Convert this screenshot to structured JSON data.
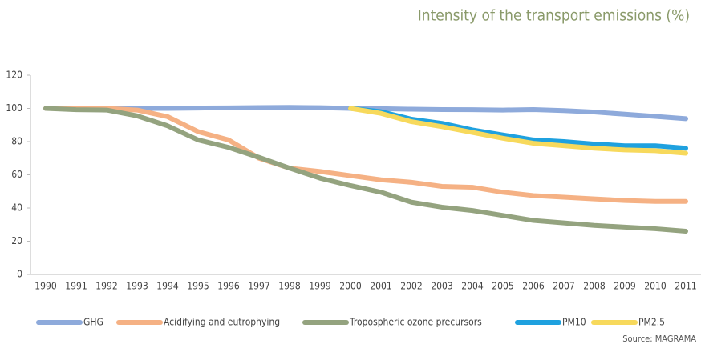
{
  "chart_data": {
    "type": "line",
    "title": "Intensity of the transport emissions (%)",
    "source": "Source: MAGRAMA",
    "categories": [
      "1990",
      "1991",
      "1992",
      "1993",
      "1994",
      "1995",
      "1996",
      "1997",
      "1998",
      "1999",
      "2000",
      "2001",
      "2002",
      "2003",
      "2004",
      "2005",
      "2006",
      "2007",
      "2008",
      "2009",
      "2010",
      "2011"
    ],
    "ylim": [
      0,
      120
    ],
    "yticks": [
      0,
      20,
      40,
      60,
      80,
      100,
      120
    ],
    "grid": false,
    "legend": "bottom",
    "series": [
      {
        "name": "GHG",
        "color": "#8eaadb",
        "values": [
          100,
          100,
          100,
          100,
          100,
          100.2,
          100.3,
          100.5,
          100.6,
          100.4,
          100,
          99.8,
          99.5,
          99.3,
          99.2,
          99,
          99.3,
          98.7,
          97.8,
          96.5,
          95.2,
          93.8
        ]
      },
      {
        "name": "Acidifying and eutrophying",
        "color": "#f5b184",
        "values": [
          100,
          100,
          100,
          99,
          95,
          86,
          81,
          70,
          64,
          62,
          59.5,
          57,
          55.5,
          53,
          52.5,
          49.5,
          47.5,
          46.5,
          45.5,
          44.5,
          44,
          44
        ]
      },
      {
        "name": "Tropospheric ozone precursors",
        "color": "#94a37f",
        "values": [
          100,
          99.2,
          99,
          95.5,
          89.5,
          81,
          76.5,
          70.5,
          64,
          58,
          53.5,
          49.5,
          43.5,
          40.5,
          38.5,
          35.5,
          32.5,
          31,
          29.5,
          28.5,
          27.5,
          26
        ]
      },
      {
        "name": "PM10",
        "color": "#1fa1df",
        "values": [
          null,
          null,
          null,
          null,
          null,
          null,
          null,
          null,
          null,
          null,
          100,
          98,
          93.5,
          91,
          87,
          84,
          81,
          80,
          78.5,
          77.5,
          77.5,
          76
        ]
      },
      {
        "name": "PM2.5",
        "color": "#f7d95c",
        "values": [
          null,
          null,
          null,
          null,
          null,
          null,
          null,
          null,
          null,
          null,
          100,
          97,
          92,
          89,
          85.5,
          82,
          79,
          77.5,
          76,
          75,
          74.5,
          73
        ]
      }
    ]
  }
}
